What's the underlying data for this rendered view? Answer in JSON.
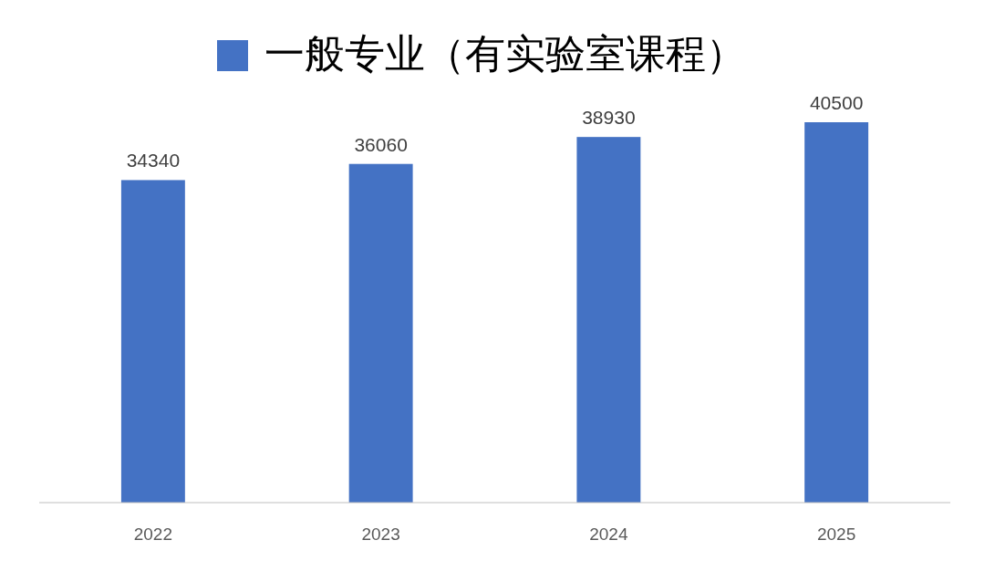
{
  "chart_data": {
    "type": "bar",
    "categories": [
      "2022",
      "2023",
      "2024",
      "2025"
    ],
    "series": [
      {
        "name": "一般专业（有实验室课程）",
        "color": "#4472c4",
        "values": [
          34340,
          36060,
          38930,
          40500
        ]
      }
    ],
    "tick_labels": "x",
    "data_labels": true,
    "legend": "top",
    "grid": false
  }
}
